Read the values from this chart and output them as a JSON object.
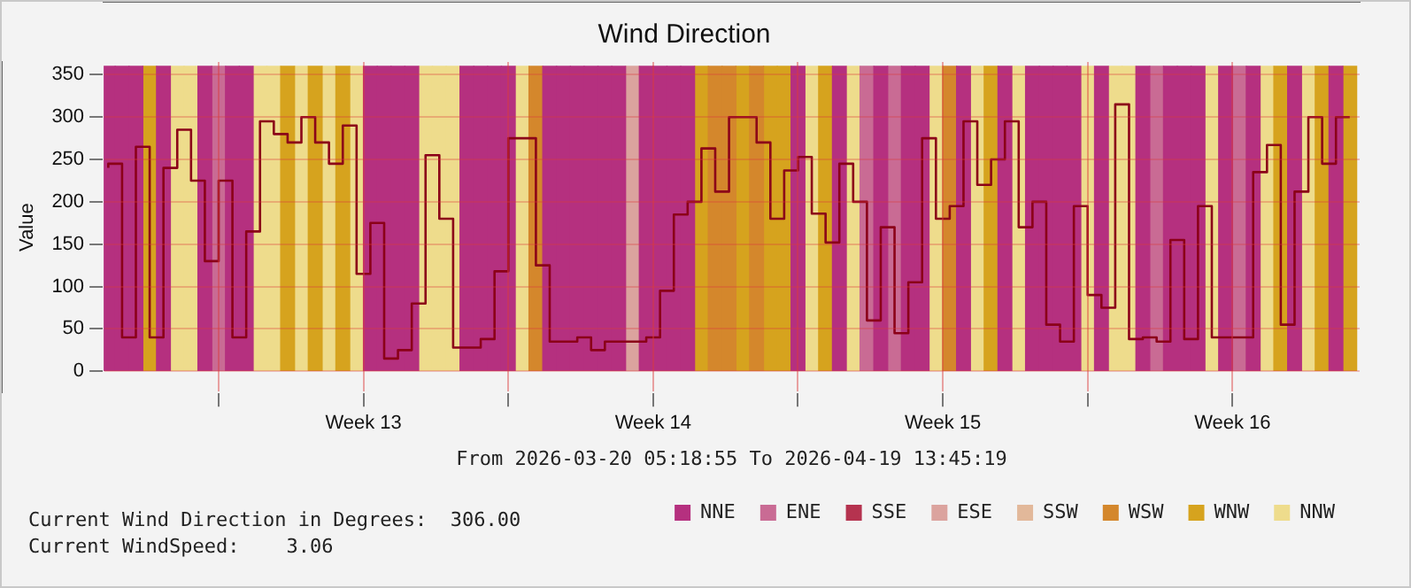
{
  "chart_data": {
    "type": "bar",
    "title": "Wind Direction",
    "xlabel": "From 2026-03-20 05:18:55 To 2026-04-19 13:45:19",
    "ylabel": "Value",
    "annotations": [
      "Current Wind Direction in Degrees:  306.00",
      "Current WindSpeed:    3.06"
    ],
    "x": [
      "2026-03-20T08:00",
      "2026-03-20T16:00",
      "2026-03-21T00:00",
      "2026-03-21T08:00",
      "2026-03-21T16:00",
      "2026-03-22T00:00",
      "2026-03-22T08:00",
      "2026-03-22T16:00",
      "2026-03-23T00:00",
      "2026-03-23T08:00",
      "2026-03-23T16:00",
      "2026-03-24T00:00",
      "2026-03-24T08:00",
      "2026-03-24T16:00",
      "2026-03-25T00:00",
      "2026-03-25T08:00",
      "2026-03-25T16:00",
      "2026-03-26T00:00",
      "2026-03-26T08:00",
      "2026-03-26T16:00",
      "2026-03-27T00:00",
      "2026-03-27T08:00",
      "2026-03-27T16:00",
      "2026-03-28T00:00",
      "2026-03-28T08:00",
      "2026-03-28T16:00",
      "2026-03-29T00:00",
      "2026-03-29T08:00",
      "2026-03-29T16:00",
      "2026-03-30T00:00",
      "2026-03-30T08:00",
      "2026-03-30T16:00",
      "2026-03-31T00:00",
      "2026-03-31T08:00",
      "2026-03-31T16:00",
      "2026-04-01T00:00",
      "2026-04-01T08:00",
      "2026-04-01T16:00",
      "2026-04-02T00:00",
      "2026-04-02T08:00",
      "2026-04-02T16:00",
      "2026-04-03T00:00",
      "2026-04-03T08:00",
      "2026-04-03T16:00",
      "2026-04-04T00:00",
      "2026-04-04T08:00",
      "2026-04-04T16:00",
      "2026-04-05T00:00",
      "2026-04-05T08:00",
      "2026-04-05T16:00",
      "2026-04-06T00:00",
      "2026-04-06T08:00",
      "2026-04-06T16:00",
      "2026-04-07T00:00",
      "2026-04-07T08:00",
      "2026-04-07T16:00",
      "2026-04-08T00:00",
      "2026-04-08T08:00",
      "2026-04-08T16:00",
      "2026-04-09T00:00",
      "2026-04-09T08:00",
      "2026-04-09T16:00",
      "2026-04-10T00:00",
      "2026-04-10T08:00",
      "2026-04-10T16:00",
      "2026-04-11T00:00",
      "2026-04-11T08:00",
      "2026-04-11T16:00",
      "2026-04-12T00:00",
      "2026-04-12T08:00",
      "2026-04-12T16:00",
      "2026-04-13T00:00",
      "2026-04-13T08:00",
      "2026-04-13T16:00",
      "2026-04-14T00:00",
      "2026-04-14T08:00",
      "2026-04-14T16:00",
      "2026-04-15T00:00",
      "2026-04-15T08:00",
      "2026-04-15T16:00",
      "2026-04-16T00:00",
      "2026-04-16T08:00",
      "2026-04-16T16:00",
      "2026-04-17T00:00",
      "2026-04-17T08:00",
      "2026-04-17T16:00",
      "2026-04-18T00:00",
      "2026-04-18T08:00",
      "2026-04-18T16:00",
      "2026-04-19T00:00",
      "2026-04-19T08:00"
    ],
    "series": [
      {
        "name": "NNE",
        "color": "#b5307f",
        "values": [
          360,
          360,
          360,
          null,
          360,
          null,
          null,
          360,
          null,
          360,
          360,
          null,
          null,
          null,
          null,
          null,
          null,
          null,
          null,
          360,
          360,
          360,
          360,
          null,
          null,
          null,
          360,
          360,
          360,
          360,
          null,
          null,
          360,
          360,
          360,
          360,
          360,
          360,
          null,
          360,
          360,
          360,
          360,
          null,
          null,
          null,
          null,
          null,
          null,
          null,
          360,
          null,
          null,
          360,
          null,
          null,
          360,
          null,
          360,
          360,
          null,
          null,
          360,
          null,
          null,
          360,
          null,
          360,
          360,
          360,
          360,
          null,
          360,
          null,
          null,
          360,
          null,
          360,
          360,
          360,
          null,
          360,
          null,
          360,
          null,
          null,
          360,
          null,
          null,
          360,
          null
        ]
      },
      {
        "name": "ENE",
        "color": "#c96b94",
        "values": [
          null,
          null,
          null,
          null,
          null,
          null,
          null,
          null,
          360,
          null,
          null,
          null,
          null,
          null,
          null,
          null,
          null,
          null,
          null,
          null,
          null,
          null,
          null,
          null,
          null,
          null,
          null,
          null,
          null,
          null,
          null,
          null,
          null,
          null,
          null,
          null,
          null,
          null,
          null,
          null,
          null,
          null,
          null,
          null,
          null,
          null,
          null,
          null,
          null,
          null,
          null,
          null,
          null,
          null,
          null,
          360,
          null,
          360,
          null,
          null,
          null,
          null,
          null,
          null,
          null,
          null,
          null,
          null,
          null,
          null,
          null,
          null,
          null,
          null,
          null,
          null,
          360,
          null,
          null,
          null,
          null,
          null,
          360,
          null,
          null,
          null,
          null,
          null,
          null,
          null,
          null
        ]
      },
      {
        "name": "SSE",
        "color": "#b5334f",
        "values": [
          null,
          null,
          null,
          null,
          null,
          null,
          null,
          null,
          null,
          null,
          null,
          null,
          null,
          null,
          null,
          null,
          null,
          null,
          null,
          null,
          null,
          null,
          null,
          null,
          null,
          null,
          null,
          null,
          null,
          null,
          null,
          null,
          null,
          null,
          null,
          null,
          null,
          null,
          null,
          null,
          null,
          null,
          null,
          null,
          null,
          null,
          null,
          null,
          null,
          null,
          null,
          null,
          null,
          null,
          null,
          null,
          null,
          null,
          null,
          null,
          null,
          null,
          null,
          null,
          null,
          null,
          null,
          null,
          null,
          null,
          null,
          null,
          null,
          null,
          null,
          null,
          null,
          null,
          null,
          null,
          null,
          null,
          null,
          null,
          null,
          null,
          null,
          null,
          null,
          null,
          null
        ]
      },
      {
        "name": "ESE",
        "color": "#dba39e",
        "values": [
          null,
          null,
          null,
          null,
          null,
          null,
          null,
          null,
          null,
          null,
          null,
          null,
          null,
          null,
          null,
          null,
          null,
          null,
          null,
          null,
          null,
          null,
          null,
          null,
          null,
          null,
          null,
          null,
          null,
          null,
          null,
          null,
          null,
          null,
          null,
          null,
          null,
          null,
          360,
          null,
          null,
          null,
          null,
          null,
          null,
          null,
          null,
          null,
          null,
          null,
          null,
          null,
          null,
          null,
          null,
          null,
          null,
          null,
          null,
          null,
          null,
          null,
          null,
          null,
          null,
          null,
          null,
          null,
          null,
          null,
          null,
          null,
          null,
          null,
          null,
          null,
          null,
          null,
          null,
          null,
          null,
          null,
          null,
          null,
          null,
          null,
          null,
          null,
          null,
          null,
          null
        ]
      },
      {
        "name": "SSW",
        "color": "#e2b89a",
        "values": [
          null,
          null,
          null,
          null,
          null,
          null,
          null,
          null,
          null,
          null,
          null,
          null,
          null,
          null,
          null,
          null,
          null,
          null,
          null,
          null,
          null,
          null,
          null,
          null,
          null,
          null,
          null,
          null,
          null,
          null,
          null,
          null,
          null,
          null,
          null,
          null,
          null,
          null,
          null,
          null,
          null,
          null,
          null,
          null,
          null,
          null,
          null,
          null,
          null,
          null,
          null,
          null,
          null,
          null,
          null,
          null,
          null,
          null,
          null,
          null,
          null,
          null,
          null,
          null,
          null,
          null,
          null,
          null,
          null,
          null,
          null,
          null,
          null,
          null,
          null,
          null,
          null,
          null,
          null,
          null,
          null,
          null,
          null,
          null,
          null,
          null,
          null,
          null,
          null,
          null,
          null
        ]
      },
      {
        "name": "WSW",
        "color": "#d4872c",
        "values": [
          null,
          null,
          null,
          null,
          null,
          null,
          null,
          null,
          null,
          null,
          null,
          null,
          null,
          null,
          null,
          null,
          null,
          null,
          null,
          null,
          null,
          null,
          null,
          null,
          null,
          null,
          null,
          null,
          null,
          null,
          null,
          360,
          null,
          null,
          null,
          null,
          null,
          null,
          null,
          null,
          null,
          null,
          null,
          null,
          360,
          360,
          null,
          360,
          null,
          null,
          null,
          null,
          null,
          null,
          null,
          null,
          null,
          null,
          null,
          null,
          null,
          360,
          null,
          null,
          null,
          null,
          null,
          null,
          null,
          null,
          null,
          null,
          null,
          null,
          null,
          null,
          null,
          null,
          null,
          null,
          null,
          null,
          null,
          null,
          null,
          null,
          null,
          null,
          null,
          null,
          null
        ]
      },
      {
        "name": "WNW",
        "color": "#d6a31e",
        "values": [
          null,
          null,
          null,
          360,
          null,
          null,
          null,
          null,
          null,
          null,
          null,
          null,
          null,
          360,
          null,
          360,
          null,
          360,
          null,
          null,
          null,
          null,
          null,
          null,
          null,
          null,
          null,
          null,
          null,
          null,
          null,
          null,
          null,
          null,
          null,
          null,
          null,
          null,
          null,
          null,
          null,
          null,
          null,
          360,
          null,
          null,
          360,
          null,
          360,
          360,
          null,
          null,
          360,
          null,
          null,
          null,
          null,
          null,
          null,
          null,
          null,
          null,
          null,
          null,
          360,
          null,
          null,
          null,
          null,
          null,
          null,
          null,
          null,
          null,
          null,
          null,
          null,
          null,
          null,
          null,
          null,
          null,
          null,
          null,
          null,
          360,
          null,
          null,
          360,
          null,
          360
        ]
      },
      {
        "name": "NNW",
        "color": "#eedc8c",
        "values": [
          null,
          null,
          null,
          null,
          null,
          360,
          360,
          null,
          null,
          null,
          null,
          360,
          360,
          null,
          360,
          null,
          360,
          null,
          360,
          null,
          null,
          null,
          null,
          360,
          360,
          360,
          null,
          null,
          null,
          null,
          360,
          null,
          null,
          null,
          null,
          null,
          null,
          null,
          null,
          null,
          null,
          null,
          null,
          null,
          null,
          null,
          null,
          null,
          null,
          null,
          null,
          360,
          null,
          null,
          360,
          null,
          null,
          null,
          null,
          null,
          360,
          null,
          null,
          360,
          null,
          null,
          360,
          null,
          null,
          null,
          null,
          360,
          null,
          360,
          360,
          null,
          null,
          null,
          null,
          null,
          360,
          null,
          null,
          null,
          360,
          null,
          null,
          360,
          null,
          null,
          null
        ]
      },
      {
        "type": "step",
        "color": "#8b0018",
        "values": [
          240,
          245,
          40,
          265,
          40,
          240,
          285,
          225,
          130,
          225,
          40,
          165,
          295,
          280,
          270,
          300,
          270,
          245,
          290,
          115,
          175,
          15,
          25,
          80,
          255,
          180,
          28,
          28,
          38,
          118,
          275,
          275,
          125,
          35,
          35,
          40,
          25,
          35,
          35,
          35,
          40,
          95,
          185,
          200,
          263,
          212,
          300,
          300,
          270,
          180,
          237,
          253,
          186,
          152,
          245,
          200,
          60,
          170,
          45,
          105,
          275,
          180,
          195,
          295,
          220,
          250,
          295,
          170,
          200,
          55,
          35,
          195,
          90,
          75,
          315,
          38,
          40,
          35,
          155,
          38,
          195,
          40,
          40,
          40,
          235,
          267,
          55,
          212,
          300,
          245,
          300
        ]
      }
    ],
    "xlim": [
      "2026-03-20T05:19",
      "2026-04-19T13:45"
    ],
    "xticks": [
      {
        "value": "2026-03-23T00:00",
        "label": null
      },
      {
        "value": "2026-03-26T12:00",
        "label": "Week 13"
      },
      {
        "value": "2026-03-30T00:00",
        "label": null
      },
      {
        "value": "2026-04-02T12:00",
        "label": "Week 14"
      },
      {
        "value": "2026-04-06T00:00",
        "label": null
      },
      {
        "value": "2026-04-09T12:00",
        "label": "Week 15"
      },
      {
        "value": "2026-04-13T00:00",
        "label": null
      },
      {
        "value": "2026-04-16T12:00",
        "label": "Week 16"
      }
    ],
    "ylim": [
      -25,
      365
    ],
    "yticks": [
      0,
      50,
      100,
      150,
      200,
      250,
      300,
      350
    ],
    "grid": true,
    "legend": "bottom",
    "marker": "none"
  }
}
